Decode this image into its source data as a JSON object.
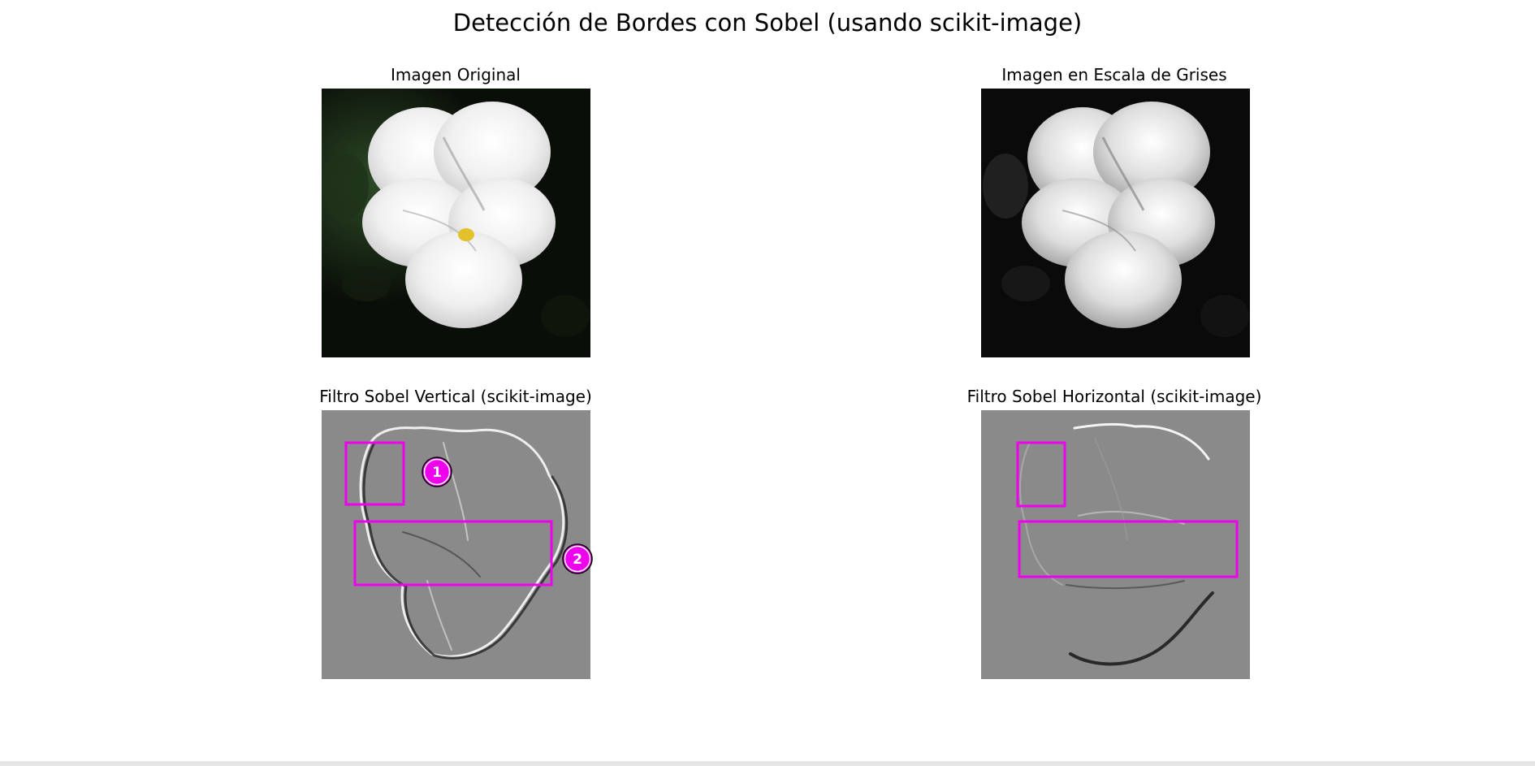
{
  "figure": {
    "title": "Detección de Bordes con Sobel (usando scikit-image)"
  },
  "panels": {
    "original": {
      "title": "Imagen Original"
    },
    "gray": {
      "title": "Imagen en Escala de Grises"
    },
    "sobel_v": {
      "title": "Filtro Sobel Vertical (scikit-image)",
      "markers": [
        "1",
        "2"
      ]
    },
    "sobel_h": {
      "title": "Filtro Sobel Horizontal (scikit-image)"
    }
  },
  "colors": {
    "highlight": "#ee00ee",
    "marker_fill": "#ee00ee",
    "marker_text": "#ffffff",
    "background": "#000000",
    "sobel_gray": "#8a8a8a"
  }
}
